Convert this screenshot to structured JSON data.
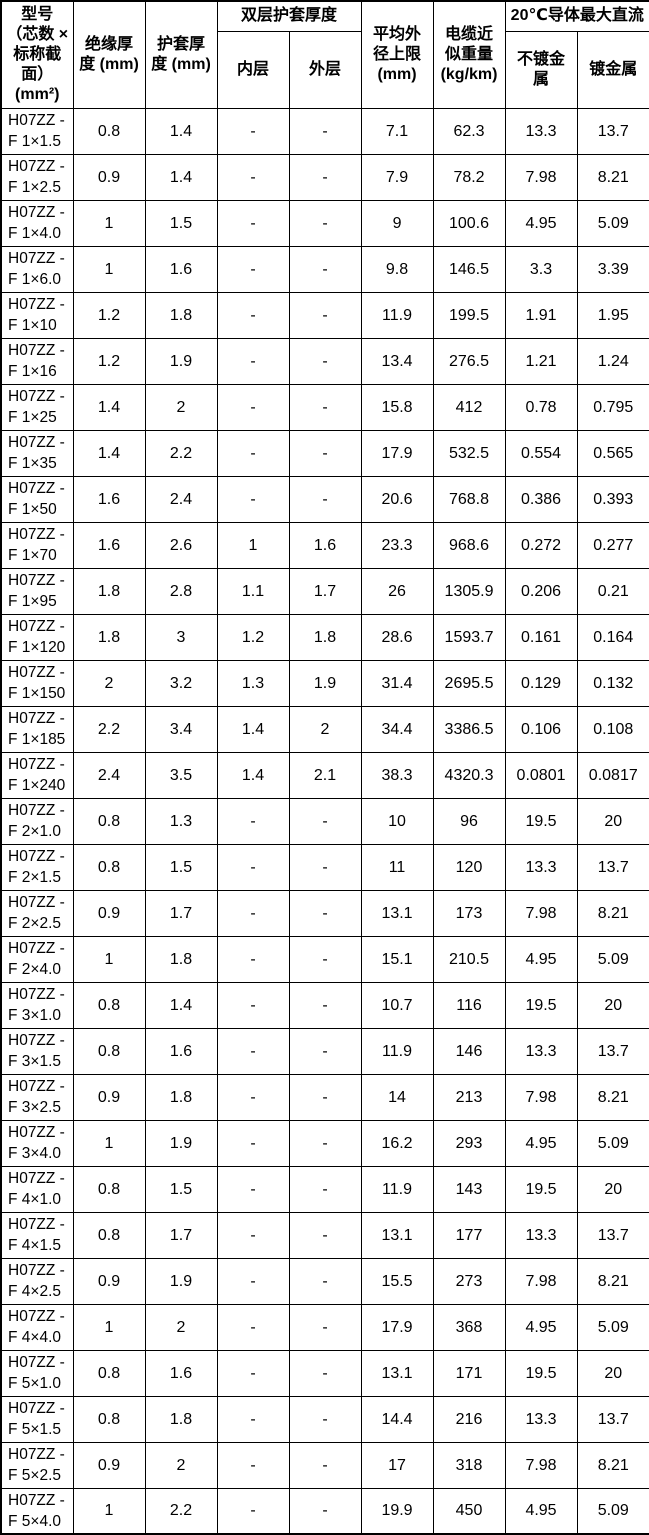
{
  "table": {
    "header": {
      "model": "型号\n（芯数 ×\n标称截\n面）\n(mm²)",
      "insulation": "绝缘厚\n度 (mm)",
      "sheath": "护套厚\n度 (mm)",
      "double_sheath": "双层护套厚度",
      "inner": "内层",
      "outer": "外层",
      "diameter": "平均外\n径上限\n(mm)",
      "weight": "电缆近\n似重量\n(kg/km)",
      "dc_max": "20℃导体最大直流",
      "untinned": "不镀金\n属",
      "tinned": "镀金属"
    },
    "rows": [
      [
        "H07ZZ - F 1×1.5",
        "0.8",
        "1.4",
        "-",
        "-",
        "7.1",
        "62.3",
        "13.3",
        "13.7"
      ],
      [
        "H07ZZ - F 1×2.5",
        "0.9",
        "1.4",
        "-",
        "-",
        "7.9",
        "78.2",
        "7.98",
        "8.21"
      ],
      [
        "H07ZZ - F 1×4.0",
        "1",
        "1.5",
        "-",
        "-",
        "9",
        "100.6",
        "4.95",
        "5.09"
      ],
      [
        "H07ZZ - F 1×6.0",
        "1",
        "1.6",
        "-",
        "-",
        "9.8",
        "146.5",
        "3.3",
        "3.39"
      ],
      [
        "H07ZZ - F 1×10",
        "1.2",
        "1.8",
        "-",
        "-",
        "11.9",
        "199.5",
        "1.91",
        "1.95"
      ],
      [
        "H07ZZ - F 1×16",
        "1.2",
        "1.9",
        "-",
        "-",
        "13.4",
        "276.5",
        "1.21",
        "1.24"
      ],
      [
        "H07ZZ - F 1×25",
        "1.4",
        "2",
        "-",
        "-",
        "15.8",
        "412",
        "0.78",
        "0.795"
      ],
      [
        "H07ZZ - F 1×35",
        "1.4",
        "2.2",
        "-",
        "-",
        "17.9",
        "532.5",
        "0.554",
        "0.565"
      ],
      [
        "H07ZZ - F 1×50",
        "1.6",
        "2.4",
        "-",
        "-",
        "20.6",
        "768.8",
        "0.386",
        "0.393"
      ],
      [
        "H07ZZ - F 1×70",
        "1.6",
        "2.6",
        "1",
        "1.6",
        "23.3",
        "968.6",
        "0.272",
        "0.277"
      ],
      [
        "H07ZZ - F 1×95",
        "1.8",
        "2.8",
        "1.1",
        "1.7",
        "26",
        "1305.9",
        "0.206",
        "0.21"
      ],
      [
        "H07ZZ - F 1×120",
        "1.8",
        "3",
        "1.2",
        "1.8",
        "28.6",
        "1593.7",
        "0.161",
        "0.164"
      ],
      [
        "H07ZZ - F 1×150",
        "2",
        "3.2",
        "1.3",
        "1.9",
        "31.4",
        "2695.5",
        "0.129",
        "0.132"
      ],
      [
        "H07ZZ - F 1×185",
        "2.2",
        "3.4",
        "1.4",
        "2",
        "34.4",
        "3386.5",
        "0.106",
        "0.108"
      ],
      [
        "H07ZZ - F 1×240",
        "2.4",
        "3.5",
        "1.4",
        "2.1",
        "38.3",
        "4320.3",
        "0.0801",
        "0.0817"
      ],
      [
        "H07ZZ - F 2×1.0",
        "0.8",
        "1.3",
        "-",
        "-",
        "10",
        "96",
        "19.5",
        "20"
      ],
      [
        "H07ZZ - F 2×1.5",
        "0.8",
        "1.5",
        "-",
        "-",
        "11",
        "120",
        "13.3",
        "13.7"
      ],
      [
        "H07ZZ - F 2×2.5",
        "0.9",
        "1.7",
        "-",
        "-",
        "13.1",
        "173",
        "7.98",
        "8.21"
      ],
      [
        "H07ZZ - F 2×4.0",
        "1",
        "1.8",
        "-",
        "-",
        "15.1",
        "210.5",
        "4.95",
        "5.09"
      ],
      [
        "H07ZZ - F 3×1.0",
        "0.8",
        "1.4",
        "-",
        "-",
        "10.7",
        "116",
        "19.5",
        "20"
      ],
      [
        "H07ZZ - F 3×1.5",
        "0.8",
        "1.6",
        "-",
        "-",
        "11.9",
        "146",
        "13.3",
        "13.7"
      ],
      [
        "H07ZZ - F 3×2.5",
        "0.9",
        "1.8",
        "-",
        "-",
        "14",
        "213",
        "7.98",
        "8.21"
      ],
      [
        "H07ZZ - F 3×4.0",
        "1",
        "1.9",
        "-",
        "-",
        "16.2",
        "293",
        "4.95",
        "5.09"
      ],
      [
        "H07ZZ - F 4×1.0",
        "0.8",
        "1.5",
        "-",
        "-",
        "11.9",
        "143",
        "19.5",
        "20"
      ],
      [
        "H07ZZ - F 4×1.5",
        "0.8",
        "1.7",
        "-",
        "-",
        "13.1",
        "177",
        "13.3",
        "13.7"
      ],
      [
        "H07ZZ - F 4×2.5",
        "0.9",
        "1.9",
        "-",
        "-",
        "15.5",
        "273",
        "7.98",
        "8.21"
      ],
      [
        "H07ZZ - F 4×4.0",
        "1",
        "2",
        "-",
        "-",
        "17.9",
        "368",
        "4.95",
        "5.09"
      ],
      [
        "H07ZZ - F 5×1.0",
        "0.8",
        "1.6",
        "-",
        "-",
        "13.1",
        "171",
        "19.5",
        "20"
      ],
      [
        "H07ZZ - F 5×1.5",
        "0.8",
        "1.8",
        "-",
        "-",
        "14.4",
        "216",
        "13.3",
        "13.7"
      ],
      [
        "H07ZZ - F 5×2.5",
        "0.9",
        "2",
        "-",
        "-",
        "17",
        "318",
        "7.98",
        "8.21"
      ],
      [
        "H07ZZ - F 5×4.0",
        "1",
        "2.2",
        "-",
        "-",
        "19.9",
        "450",
        "4.95",
        "5.09"
      ]
    ],
    "colors": {
      "border": "#000000",
      "text": "#000000",
      "background": "#ffffff"
    }
  }
}
